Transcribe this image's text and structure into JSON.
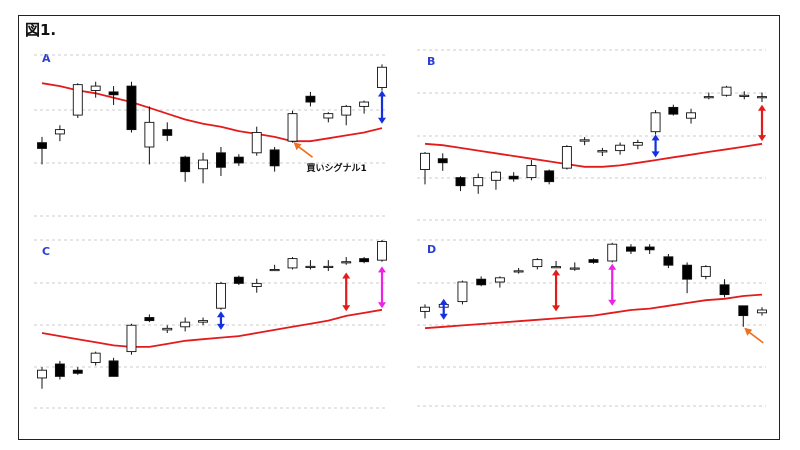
{
  "figure_title": "図1.",
  "colors": {
    "ma_line": "#e31b1b",
    "up_candle": "#ffffff",
    "down_candle": "#000000",
    "blue_arrow": "#1530e0",
    "red_arrow": "#e31b1b",
    "magenta_arrow": "#f020e8",
    "orange_arrow": "#f07020",
    "grid": "#bdbdbd",
    "panel_label": "#2a3fd0"
  },
  "chart_data": [
    {
      "type": "candlestick",
      "panel_label": "A",
      "ylim": [
        0,
        100
      ],
      "grid": "horizontal-dashed",
      "candles": [
        {
          "o": 43,
          "h": 47,
          "l": 28,
          "c": 39
        },
        {
          "o": 49,
          "h": 55,
          "l": 44,
          "c": 52
        },
        {
          "o": 62,
          "h": 84,
          "l": 60,
          "c": 83
        },
        {
          "o": 79,
          "h": 85,
          "l": 74,
          "c": 82
        },
        {
          "o": 78,
          "h": 82,
          "l": 69,
          "c": 76
        },
        {
          "o": 82,
          "h": 85,
          "l": 50,
          "c": 52
        },
        {
          "o": 40,
          "h": 68,
          "l": 28,
          "c": 57
        },
        {
          "o": 52,
          "h": 57,
          "l": 44,
          "c": 48
        },
        {
          "o": 33,
          "h": 34,
          "l": 16,
          "c": 23
        },
        {
          "o": 25,
          "h": 36,
          "l": 15,
          "c": 31
        },
        {
          "o": 36,
          "h": 40,
          "l": 20,
          "c": 26
        },
        {
          "o": 33,
          "h": 35,
          "l": 27,
          "c": 29
        },
        {
          "o": 36,
          "h": 54,
          "l": 34,
          "c": 50
        },
        {
          "o": 38,
          "h": 40,
          "l": 23,
          "c": 27
        },
        {
          "o": 44,
          "h": 65,
          "l": 43,
          "c": 63
        },
        {
          "o": 75,
          "h": 78,
          "l": 68,
          "c": 71
        },
        {
          "o": 60,
          "h": 64,
          "l": 57,
          "c": 63
        },
        {
          "o": 62,
          "h": 69,
          "l": 55,
          "c": 68
        },
        {
          "o": 68,
          "h": 72,
          "l": 63,
          "c": 71
        },
        {
          "o": 81,
          "h": 97,
          "l": 79,
          "c": 95
        }
      ],
      "ma": [
        84,
        82,
        79,
        77,
        74,
        71,
        67,
        63,
        59,
        56,
        54,
        51,
        49,
        47,
        44,
        44,
        46,
        48,
        50,
        53
      ],
      "arrows": [
        {
          "index": 19,
          "from": 56,
          "to": 79,
          "color": "#1530e0",
          "style": "double-vertical"
        }
      ],
      "annotations": [
        {
          "text": "買いシグナル1",
          "index": 14,
          "value": 44,
          "arrow_color": "#f07020"
        }
      ]
    },
    {
      "type": "candlestick",
      "panel_label": "B",
      "ylim": [
        0,
        100
      ],
      "grid": "horizontal-dashed",
      "candles": [
        {
          "o": 30,
          "h": 43,
          "l": 19,
          "c": 42
        },
        {
          "o": 38,
          "h": 42,
          "l": 29,
          "c": 35
        },
        {
          "o": 24,
          "h": 25,
          "l": 14,
          "c": 18
        },
        {
          "o": 18,
          "h": 27,
          "l": 12,
          "c": 24
        },
        {
          "o": 22,
          "h": 29,
          "l": 15,
          "c": 28
        },
        {
          "o": 25,
          "h": 28,
          "l": 21,
          "c": 23
        },
        {
          "o": 24,
          "h": 37,
          "l": 22,
          "c": 33
        },
        {
          "o": 29,
          "h": 30,
          "l": 19,
          "c": 21
        },
        {
          "o": 31,
          "h": 48,
          "l": 30,
          "c": 47
        },
        {
          "o": 51,
          "h": 54,
          "l": 48,
          "c": 52
        },
        {
          "o": 43,
          "h": 46,
          "l": 40,
          "c": 44
        },
        {
          "o": 44,
          "h": 50,
          "l": 41,
          "c": 48
        },
        {
          "o": 48,
          "h": 52,
          "l": 45,
          "c": 50
        },
        {
          "o": 58,
          "h": 74,
          "l": 56,
          "c": 72
        },
        {
          "o": 76,
          "h": 78,
          "l": 70,
          "c": 71
        },
        {
          "o": 68,
          "h": 75,
          "l": 64,
          "c": 72
        },
        {
          "o": 84,
          "h": 87,
          "l": 82,
          "c": 84
        },
        {
          "o": 85,
          "h": 92,
          "l": 84,
          "c": 91
        },
        {
          "o": 85,
          "h": 88,
          "l": 82,
          "c": 85
        },
        {
          "o": 84,
          "h": 87,
          "l": 80,
          "c": 84
        }
      ],
      "ma": [
        49,
        48,
        46,
        44,
        42,
        40,
        38,
        36,
        34,
        32,
        32,
        33,
        35,
        37,
        39,
        41,
        43,
        45,
        47,
        49
      ],
      "arrows": [
        {
          "index": 13,
          "from": 39,
          "to": 56,
          "color": "#1530e0",
          "style": "double-vertical"
        },
        {
          "index": 19,
          "from": 51,
          "to": 78,
          "color": "#e31b1b",
          "style": "double-vertical"
        }
      ],
      "annotations": []
    },
    {
      "type": "candlestick",
      "panel_label": "C",
      "ylim": [
        0,
        100
      ],
      "grid": "horizontal-dashed",
      "candles": [
        {
          "o": 11,
          "h": 18,
          "l": 4,
          "c": 16
        },
        {
          "o": 20,
          "h": 22,
          "l": 10,
          "c": 12
        },
        {
          "o": 16,
          "h": 18,
          "l": 13,
          "c": 14
        },
        {
          "o": 21,
          "h": 28,
          "l": 19,
          "c": 27
        },
        {
          "o": 22,
          "h": 24,
          "l": 12,
          "c": 12
        },
        {
          "o": 28,
          "h": 46,
          "l": 26,
          "c": 45
        },
        {
          "o": 50,
          "h": 52,
          "l": 47,
          "c": 48
        },
        {
          "o": 42,
          "h": 45,
          "l": 40,
          "c": 43
        },
        {
          "o": 44,
          "h": 50,
          "l": 41,
          "c": 47
        },
        {
          "o": 47,
          "h": 50,
          "l": 45,
          "c": 48
        },
        {
          "o": 56,
          "h": 73,
          "l": 55,
          "c": 72
        },
        {
          "o": 76,
          "h": 77,
          "l": 71,
          "c": 72
        },
        {
          "o": 70,
          "h": 75,
          "l": 66,
          "c": 72
        },
        {
          "o": 81,
          "h": 84,
          "l": 80,
          "c": 81
        },
        {
          "o": 82,
          "h": 89,
          "l": 81,
          "c": 88
        },
        {
          "o": 83,
          "h": 87,
          "l": 81,
          "c": 83
        },
        {
          "o": 83,
          "h": 87,
          "l": 80,
          "c": 83
        },
        {
          "o": 86,
          "h": 89,
          "l": 84,
          "c": 86
        },
        {
          "o": 88,
          "h": 89,
          "l": 85,
          "c": 86
        },
        {
          "o": 87,
          "h": 100,
          "l": 86,
          "c": 99
        }
      ],
      "ma": [
        40,
        38,
        36,
        34,
        32,
        31,
        31,
        33,
        35,
        36,
        37,
        38,
        40,
        42,
        44,
        46,
        48,
        51,
        53,
        55
      ],
      "arrows": [
        {
          "index": 10,
          "from": 42,
          "to": 54,
          "color": "#1530e0",
          "style": "double-vertical"
        },
        {
          "index": 17,
          "from": 54,
          "to": 79,
          "color": "#e31b1b",
          "style": "double-vertical"
        },
        {
          "index": 19,
          "from": 56,
          "to": 83,
          "color": "#f020e8",
          "style": "double-vertical"
        }
      ],
      "annotations": []
    },
    {
      "type": "candlestick",
      "panel_label": "D",
      "ylim": [
        0,
        100
      ],
      "grid": "horizontal-dashed",
      "candles": [
        {
          "o": 49,
          "h": 54,
          "l": 44,
          "c": 52
        },
        {
          "o": 52,
          "h": 56,
          "l": 49,
          "c": 54
        },
        {
          "o": 56,
          "h": 71,
          "l": 54,
          "c": 70
        },
        {
          "o": 72,
          "h": 74,
          "l": 67,
          "c": 68
        },
        {
          "o": 70,
          "h": 74,
          "l": 66,
          "c": 73
        },
        {
          "o": 78,
          "h": 80,
          "l": 76,
          "c": 78
        },
        {
          "o": 81,
          "h": 87,
          "l": 79,
          "c": 86
        },
        {
          "o": 81,
          "h": 85,
          "l": 80,
          "c": 81
        },
        {
          "o": 80,
          "h": 84,
          "l": 78,
          "c": 80
        },
        {
          "o": 86,
          "h": 87,
          "l": 83,
          "c": 84
        },
        {
          "o": 85,
          "h": 98,
          "l": 84,
          "c": 97
        },
        {
          "o": 95,
          "h": 97,
          "l": 90,
          "c": 92
        },
        {
          "o": 95,
          "h": 97,
          "l": 90,
          "c": 93
        },
        {
          "o": 88,
          "h": 90,
          "l": 80,
          "c": 82
        },
        {
          "o": 82,
          "h": 84,
          "l": 62,
          "c": 72
        },
        {
          "o": 74,
          "h": 82,
          "l": 72,
          "c": 81
        },
        {
          "o": 68,
          "h": 72,
          "l": 59,
          "c": 61
        },
        {
          "o": 53,
          "h": 53,
          "l": 38,
          "c": 46
        },
        {
          "o": 48,
          "h": 52,
          "l": 46,
          "c": 50
        }
      ],
      "ma": [
        37,
        38,
        39,
        40,
        41,
        42,
        43,
        44,
        45,
        46,
        48,
        50,
        51,
        53,
        55,
        57,
        58,
        60,
        61
      ],
      "arrows": [
        {
          "index": 1,
          "from": 43,
          "to": 58,
          "color": "#1530e0",
          "style": "double-vertical"
        },
        {
          "index": 7,
          "from": 49,
          "to": 79,
          "color": "#e31b1b",
          "style": "double-vertical"
        },
        {
          "index": 10,
          "from": 53,
          "to": 83,
          "color": "#f020e8",
          "style": "double-vertical"
        }
      ],
      "annotations": [
        {
          "text": "",
          "index": 17,
          "value": 38,
          "arrow_color": "#f07020"
        }
      ]
    }
  ]
}
